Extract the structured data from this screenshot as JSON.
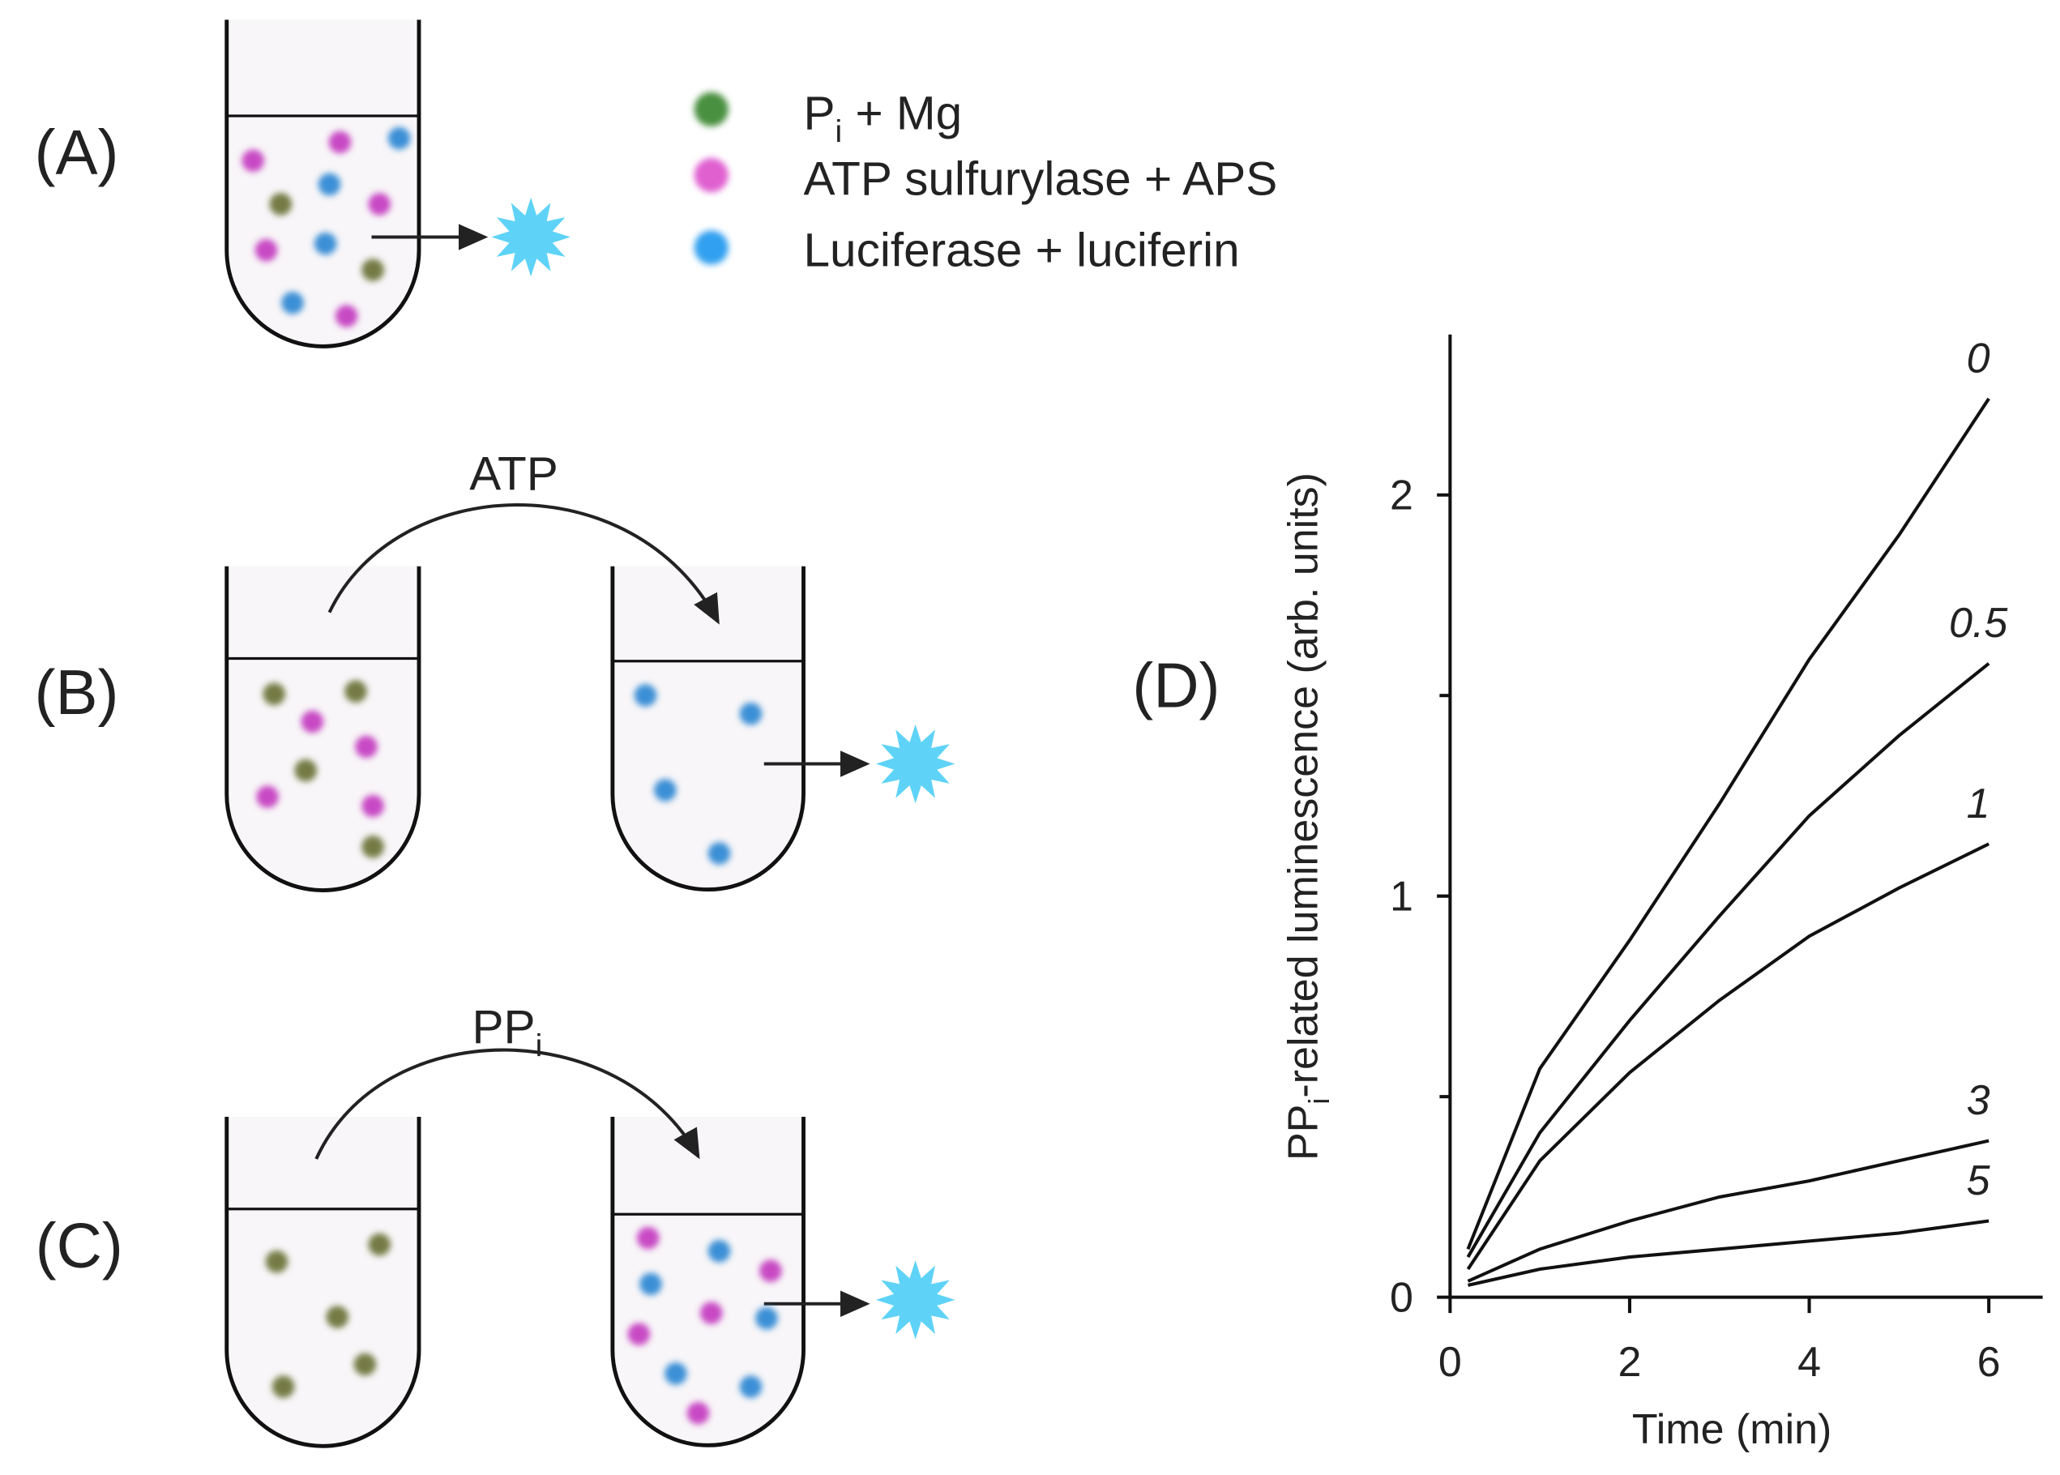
{
  "panels": {
    "a": "(A)",
    "b": "(B)",
    "c": "(C)",
    "d": "(D)"
  },
  "legend": [
    {
      "main": "P",
      "sub": "i",
      "rest": " + Mg"
    },
    {
      "main": "ATP sulfurylase + APS"
    },
    {
      "main": "Luciferase + luciferin"
    }
  ],
  "arrows": {
    "b": {
      "main": "ATP"
    },
    "c": {
      "main": "PP",
      "sub": "i"
    }
  },
  "chart_data": {
    "type": "line",
    "xlabel": "Time (min)",
    "ylabel": {
      "main": "PP",
      "sub": "i",
      "rest": "-related luminescence (arb. units)"
    },
    "x": [
      0.2,
      1,
      2,
      3,
      4,
      5,
      6
    ],
    "series": [
      {
        "name": "0",
        "color": "#111111",
        "values": [
          0.12,
          0.57,
          0.89,
          1.23,
          1.59,
          1.9,
          2.24
        ]
      },
      {
        "name": "0.5",
        "color": "#111111",
        "values": [
          0.1,
          0.41,
          0.69,
          0.95,
          1.2,
          1.4,
          1.58
        ]
      },
      {
        "name": "1",
        "color": "#111111",
        "values": [
          0.07,
          0.34,
          0.56,
          0.74,
          0.9,
          1.02,
          1.13
        ]
      },
      {
        "name": "3",
        "color": "#111111",
        "values": [
          0.04,
          0.12,
          0.19,
          0.25,
          0.29,
          0.34,
          0.39
        ]
      },
      {
        "name": "5",
        "color": "#111111",
        "values": [
          0.03,
          0.07,
          0.1,
          0.12,
          0.14,
          0.16,
          0.19
        ]
      }
    ],
    "xlim": [
      0,
      6.6
    ],
    "xticks": [
      0,
      2,
      4,
      6
    ],
    "ylim": [
      0,
      2.4
    ],
    "yticks": [
      0,
      1,
      2
    ],
    "yticks_minor": [
      0.5,
      1.5
    ]
  }
}
